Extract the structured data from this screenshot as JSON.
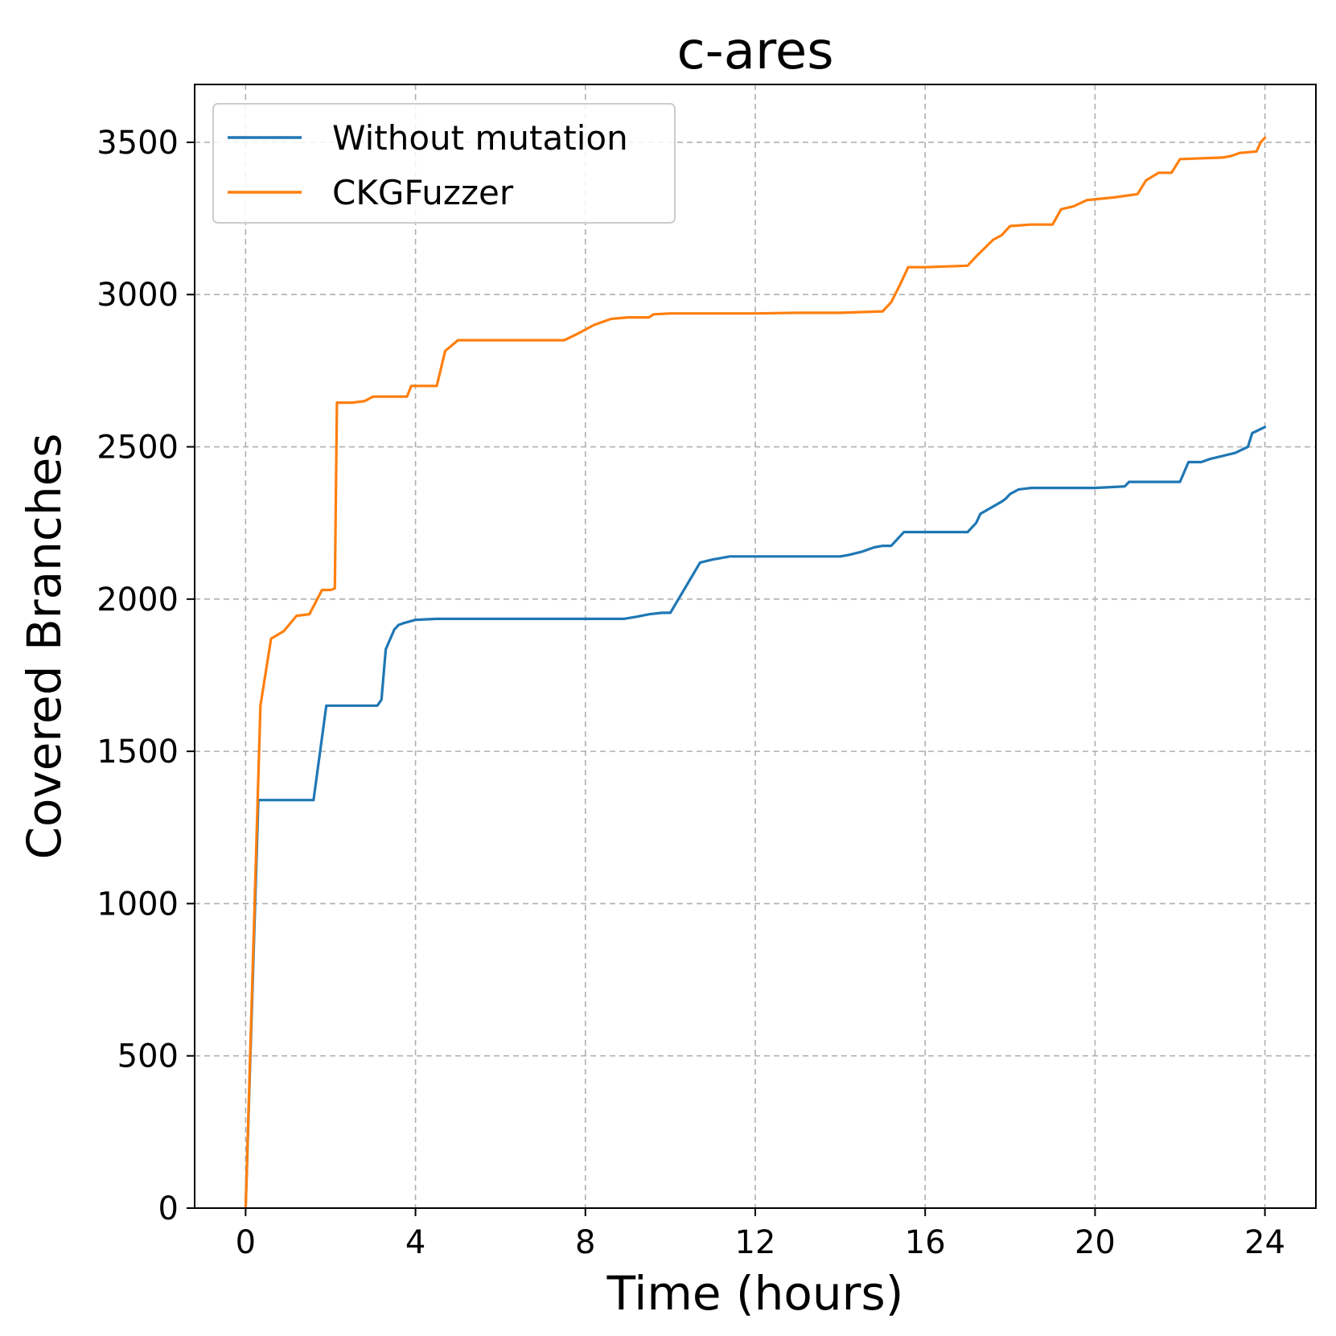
{
  "chart_data": {
    "type": "line",
    "title": "c-ares",
    "xlabel": "Time (hours)",
    "ylabel": "Covered Branches",
    "xlim": [
      -1.2,
      25.2
    ],
    "ylim": [
      0,
      3690
    ],
    "xticks": [
      0,
      4,
      8,
      12,
      16,
      20,
      24
    ],
    "yticks": [
      0,
      500,
      1000,
      1500,
      2000,
      2500,
      3000,
      3500
    ],
    "grid": true,
    "legend_position": "top-left",
    "series": [
      {
        "name": "Without mutation",
        "color": "#1f77b4",
        "x": [
          0,
          0.3,
          0.5,
          1.0,
          1.6,
          1.9,
          2.2,
          3.1,
          3.2,
          3.3,
          3.5,
          3.6,
          3.7,
          4.0,
          4.5,
          5.0,
          7.0,
          8.0,
          8.9,
          9.2,
          9.5,
          9.8,
          10.0,
          10.7,
          11.0,
          11.4,
          12.0,
          13.0,
          14.0,
          14.2,
          14.5,
          14.8,
          15.0,
          15.2,
          15.4,
          15.5,
          17.0,
          17.2,
          17.3,
          17.8,
          17.9,
          18.0,
          18.2,
          18.5,
          20.0,
          20.7,
          20.8,
          22.0,
          22.2,
          22.5,
          22.7,
          23.0,
          23.3,
          23.6,
          23.7,
          24.0
        ],
        "y": [
          0,
          1340,
          1340,
          1340,
          1340,
          1650,
          1650,
          1650,
          1670,
          1835,
          1900,
          1915,
          1920,
          1932,
          1935,
          1935,
          1935,
          1935,
          1935,
          1942,
          1950,
          1955,
          1955,
          2120,
          2130,
          2140,
          2140,
          2140,
          2140,
          2145,
          2155,
          2170,
          2175,
          2175,
          2205,
          2220,
          2220,
          2250,
          2280,
          2320,
          2330,
          2345,
          2360,
          2365,
          2365,
          2370,
          2385,
          2385,
          2450,
          2450,
          2460,
          2470,
          2480,
          2500,
          2545,
          2565
        ]
      },
      {
        "name": "CKGFuzzer",
        "color": "#ff7f0e",
        "x": [
          0,
          0.35,
          0.6,
          0.9,
          1.2,
          1.5,
          1.8,
          2.0,
          2.1,
          2.15,
          2.5,
          2.8,
          3.0,
          3.5,
          3.8,
          3.9,
          4.0,
          4.5,
          4.7,
          5.0,
          6.0,
          7.0,
          7.5,
          7.8,
          8.2,
          8.6,
          9.0,
          9.5,
          9.6,
          10.0,
          11.0,
          12.0,
          13.0,
          14.0,
          15.0,
          15.2,
          15.4,
          15.6,
          15.8,
          16.0,
          17.0,
          17.2,
          17.6,
          17.8,
          18.0,
          18.5,
          19.0,
          19.2,
          19.5,
          19.8,
          20.5,
          21.0,
          21.2,
          21.5,
          21.8,
          22.0,
          23.0,
          23.2,
          23.4,
          23.8,
          23.9,
          24.0
        ],
        "y": [
          0,
          1650,
          1870,
          1895,
          1945,
          1950,
          2030,
          2030,
          2035,
          2645,
          2645,
          2650,
          2665,
          2665,
          2665,
          2700,
          2700,
          2700,
          2815,
          2850,
          2850,
          2850,
          2850,
          2870,
          2900,
          2920,
          2925,
          2925,
          2935,
          2938,
          2938,
          2938,
          2940,
          2940,
          2945,
          2975,
          3030,
          3090,
          3090,
          3090,
          3095,
          3125,
          3180,
          3195,
          3225,
          3230,
          3230,
          3280,
          3290,
          3310,
          3320,
          3330,
          3375,
          3400,
          3400,
          3445,
          3450,
          3455,
          3465,
          3470,
          3500,
          3515
        ]
      }
    ]
  }
}
